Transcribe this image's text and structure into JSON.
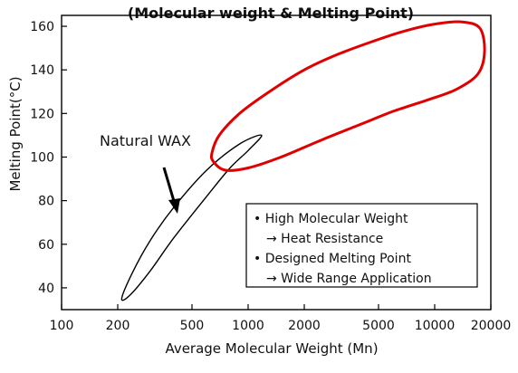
{
  "chart_data": {
    "type": "scatter",
    "title": "(Molecular weight & Melting Point)",
    "xlabel": "Average Molecular Weight (Mn)",
    "ylabel": "Melting Point(°C)",
    "x_scale": "log",
    "xlim": [
      100,
      20000
    ],
    "ylim": [
      30,
      165
    ],
    "x_ticks": [
      100,
      200,
      500,
      1000,
      2000,
      5000,
      10000,
      20000
    ],
    "x_tick_labels": [
      "100",
      "200",
      "500",
      "1000",
      "2000",
      "5000",
      "10000",
      "20000"
    ],
    "y_ticks": [
      40,
      60,
      80,
      100,
      120,
      140,
      160
    ],
    "y_tick_labels": [
      "40",
      "60",
      "80",
      "100",
      "120",
      "140",
      "160"
    ],
    "grid": false,
    "regions": [
      {
        "color": "#000000",
        "boundary": [
          [
            1180,
            110
          ],
          [
            900,
            106
          ],
          [
            600,
            94
          ],
          [
            400,
            77
          ],
          [
            300,
            62
          ],
          [
            240,
            47
          ],
          [
            210,
            35
          ],
          [
            235,
            37
          ],
          [
            300,
            48
          ],
          [
            400,
            63
          ],
          [
            600,
            82
          ],
          [
            800,
            95
          ],
          [
            1000,
            103
          ]
        ]
      },
      {
        "color": "#e00000",
        "boundary": [
          [
            640,
            102
          ],
          [
            700,
            110
          ],
          [
            900,
            120
          ],
          [
            1300,
            130
          ],
          [
            2000,
            140
          ],
          [
            3000,
            147
          ],
          [
            5000,
            154
          ],
          [
            7000,
            158
          ],
          [
            10000,
            161
          ],
          [
            14000,
            162
          ],
          [
            17500,
            159
          ],
          [
            18500,
            148
          ],
          [
            17000,
            138
          ],
          [
            13000,
            131
          ],
          [
            9000,
            126
          ],
          [
            6000,
            121
          ],
          [
            4000,
            115
          ],
          [
            2500,
            108
          ],
          [
            1500,
            100
          ],
          [
            1000,
            95
          ],
          [
            750,
            94
          ],
          [
            650,
            98
          ]
        ]
      }
    ],
    "annotations": [
      {
        "text": "Natural WAX",
        "arrow": true
      }
    ],
    "legend": {
      "placement": "bottom-right",
      "lines": [
        "• High Molecular Weight",
        "→ Heat Resistance",
        "• Designed Melting Point",
        "→ Wide Range Application"
      ]
    }
  }
}
